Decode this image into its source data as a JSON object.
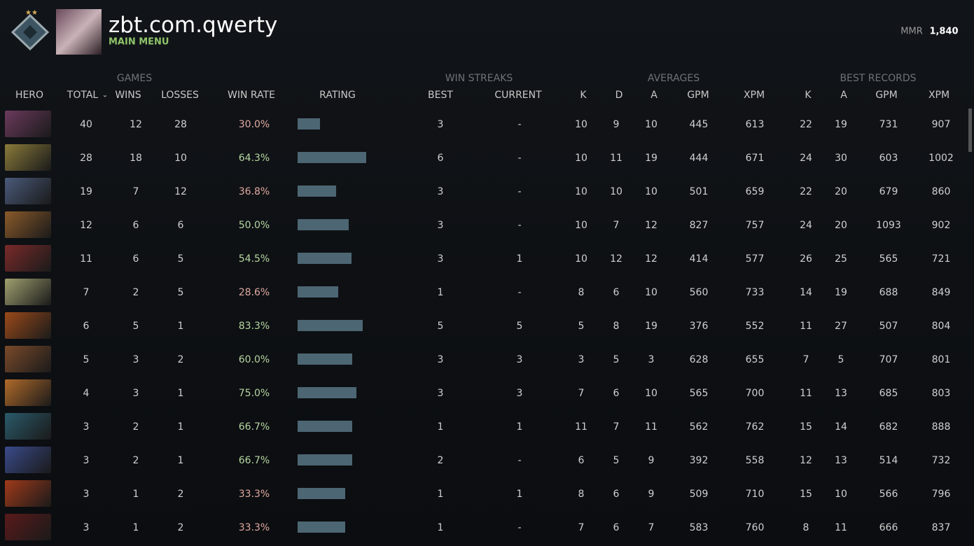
{
  "header": {
    "profile_name": "zbt.com.qwerty",
    "subtitle": "MAIN MENU",
    "mmr_label": "MMR",
    "mmr_value": "1,840"
  },
  "table": {
    "groups": [
      "GAMES",
      "WIN STREAKS",
      "AVERAGES",
      "BEST RECORDS"
    ],
    "columns": [
      "HERO",
      "TOTAL",
      "WINS",
      "LOSSES",
      "WIN RATE",
      "RATING",
      "BEST",
      "CURRENT",
      "K",
      "D",
      "A",
      "GPM",
      "XPM",
      "K",
      "A",
      "GPM",
      "XPM"
    ],
    "rows": [
      {
        "cells": [
          40,
          12,
          28,
          "30.0%",
          3,
          "-",
          10,
          9,
          10,
          445,
          613,
          22,
          19,
          731,
          907
        ],
        "rating": 32
      },
      {
        "cells": [
          28,
          18,
          10,
          "64.3%",
          6,
          "-",
          10,
          11,
          19,
          444,
          671,
          24,
          30,
          603,
          1002
        ],
        "rating": 98
      },
      {
        "cells": [
          19,
          7,
          12,
          "36.8%",
          3,
          "-",
          10,
          10,
          10,
          501,
          659,
          22,
          20,
          679,
          860
        ],
        "rating": 55
      },
      {
        "cells": [
          12,
          6,
          6,
          "50.0%",
          3,
          "-",
          10,
          7,
          12,
          827,
          757,
          24,
          20,
          1093,
          902
        ],
        "rating": 73
      },
      {
        "cells": [
          11,
          6,
          5,
          "54.5%",
          3,
          1,
          10,
          12,
          12,
          414,
          577,
          26,
          25,
          565,
          721
        ],
        "rating": 77
      },
      {
        "cells": [
          7,
          2,
          5,
          "28.6%",
          1,
          "-",
          8,
          6,
          10,
          560,
          733,
          14,
          19,
          688,
          849
        ],
        "rating": 58
      },
      {
        "cells": [
          6,
          5,
          1,
          "83.3%",
          5,
          5,
          5,
          8,
          19,
          376,
          552,
          11,
          27,
          507,
          804
        ],
        "rating": 93
      },
      {
        "cells": [
          5,
          3,
          2,
          "60.0%",
          3,
          3,
          3,
          5,
          3,
          628,
          655,
          7,
          5,
          707,
          801
        ],
        "rating": 78
      },
      {
        "cells": [
          4,
          3,
          1,
          "75.0%",
          3,
          3,
          7,
          6,
          10,
          565,
          700,
          11,
          13,
          685,
          803
        ],
        "rating": 84
      },
      {
        "cells": [
          3,
          2,
          1,
          "66.7%",
          1,
          1,
          11,
          7,
          11,
          562,
          762,
          15,
          14,
          682,
          888
        ],
        "rating": 78
      },
      {
        "cells": [
          3,
          2,
          1,
          "66.7%",
          2,
          "-",
          6,
          5,
          9,
          392,
          558,
          12,
          13,
          514,
          732
        ],
        "rating": 78
      },
      {
        "cells": [
          3,
          1,
          2,
          "33.3%",
          1,
          1,
          8,
          6,
          9,
          509,
          710,
          15,
          10,
          566,
          796
        ],
        "rating": 68
      },
      {
        "cells": [
          3,
          1,
          2,
          "33.3%",
          1,
          "-",
          7,
          6,
          7,
          583,
          760,
          8,
          11,
          666,
          837
        ],
        "rating": 68
      }
    ]
  }
}
